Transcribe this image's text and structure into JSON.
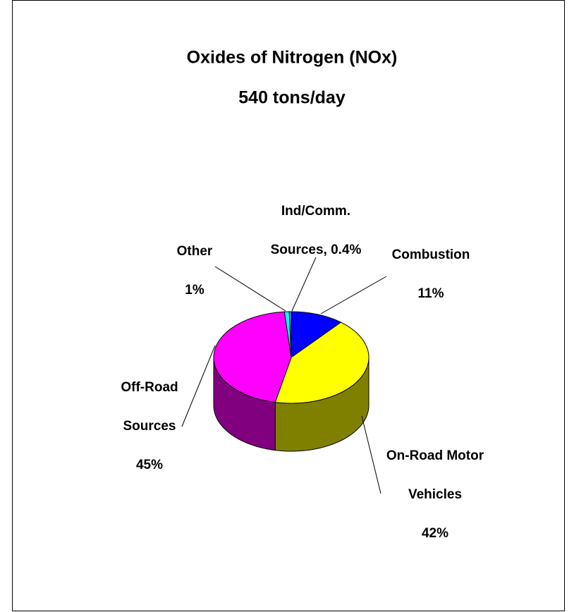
{
  "chart_data": {
    "type": "pie3d",
    "title": [
      "Oxides of Nitrogen (NOx)",
      "540 tons/day"
    ],
    "categories": [
      "Combustion",
      "On-Road Motor Vehicles",
      "Off-Road Sources",
      "Other",
      "Ind/Comm. Sources"
    ],
    "values": [
      11,
      42,
      45,
      1,
      0.4
    ],
    "label_lines": [
      [
        "Combustion",
        "11%"
      ],
      [
        "On-Road Motor",
        "Vehicles",
        "42%"
      ],
      [
        "Off-Road",
        "Sources",
        "45%"
      ],
      [
        "Other",
        "1%"
      ],
      [
        "Ind/Comm.",
        "Sources, 0.4%"
      ]
    ],
    "colors": [
      "#0000ff",
      "#ffff00",
      "#ff00ff",
      "#00ffff",
      "#9090ff"
    ]
  }
}
